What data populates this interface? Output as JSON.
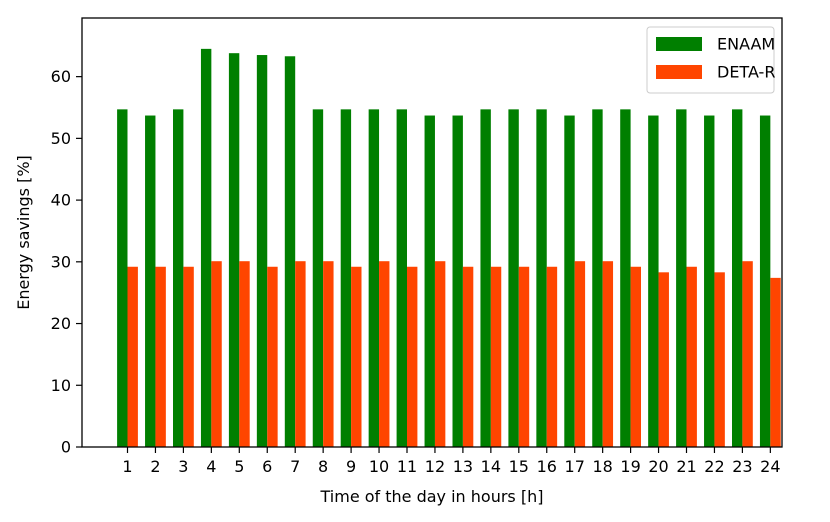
{
  "chart_data": {
    "type": "bar",
    "title": "",
    "xlabel": "Time of the day in hours [h]",
    "ylabel": "Energy savings [%]",
    "categories": [
      "1",
      "2",
      "3",
      "4",
      "5",
      "6",
      "7",
      "8",
      "9",
      "10",
      "11",
      "12",
      "13",
      "14",
      "15",
      "16",
      "17",
      "18",
      "19",
      "20",
      "21",
      "22",
      "23",
      "24"
    ],
    "series": [
      {
        "name": "ENAAM",
        "color": "#007f00",
        "values": [
          54.7,
          53.7,
          54.7,
          64.5,
          63.8,
          63.5,
          63.3,
          54.7,
          54.7,
          54.7,
          54.7,
          53.7,
          53.7,
          54.7,
          54.7,
          54.7,
          53.7,
          54.7,
          54.7,
          53.7,
          54.7,
          53.7,
          54.7,
          53.7
        ]
      },
      {
        "name": "DETA-R",
        "color": "#ff4500",
        "values": [
          29.2,
          29.2,
          29.2,
          30.1,
          30.1,
          29.2,
          30.1,
          30.1,
          29.2,
          30.1,
          29.2,
          30.1,
          29.2,
          29.2,
          29.2,
          29.2,
          30.1,
          30.1,
          29.2,
          28.3,
          29.2,
          28.3,
          30.1,
          27.4
        ]
      }
    ],
    "ylim": [
      0,
      69.5
    ],
    "yticks": [
      0,
      10,
      20,
      30,
      40,
      50,
      60
    ],
    "grid": false,
    "legend": "top-right"
  }
}
